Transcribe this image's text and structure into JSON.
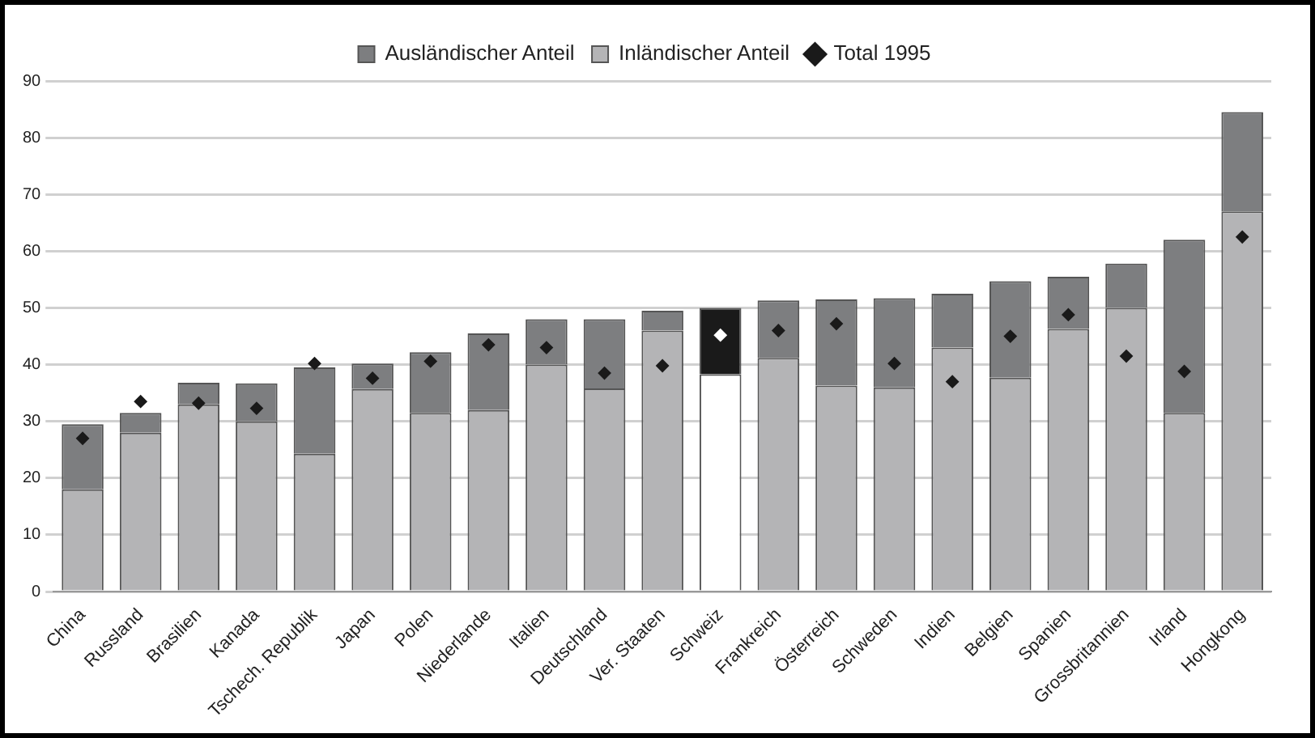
{
  "chart_data": {
    "type": "bar",
    "stacked": true,
    "categories": [
      "China",
      "Russland",
      "Brasilien",
      "Kanada",
      "Tschech. Republik",
      "Japan",
      "Polen",
      "Niederlande",
      "Italien",
      "Deutschland",
      "Ver. Staaten",
      "Schweiz",
      "Frankreich",
      "Österreich",
      "Schweden",
      "Indien",
      "Belgien",
      "Spanien",
      "Grossbritannien",
      "Irland",
      "Hongkong"
    ],
    "series": [
      {
        "name": "Inländischer Anteil",
        "color": "#b4b4b6",
        "colors": [
          "#b4b4b6",
          "#b4b4b6",
          "#b4b4b6",
          "#b4b4b6",
          "#b4b4b6",
          "#b4b4b6",
          "#b4b4b6",
          "#b4b4b6",
          "#b4b4b6",
          "#b4b4b6",
          "#b4b4b6",
          "#ffffff",
          "#b4b4b6",
          "#b4b4b6",
          "#b4b4b6",
          "#b4b4b6",
          "#b4b4b6",
          "#b4b4b6",
          "#b4b4b6",
          "#b4b4b6",
          "#b4b4b6"
        ],
        "values": [
          18,
          28,
          33,
          30,
          24.3,
          35.7,
          31.5,
          32,
          40,
          35.8,
          46,
          38.3,
          41.2,
          36.3,
          36,
          43,
          37.7,
          46.3,
          50,
          31.5,
          67
        ]
      },
      {
        "name": "Ausländischer Anteil",
        "color": "#7d7e80",
        "colors": [
          "#7d7e80",
          "#7d7e80",
          "#7d7e80",
          "#7d7e80",
          "#7d7e80",
          "#7d7e80",
          "#7d7e80",
          "#7d7e80",
          "#7d7e80",
          "#7d7e80",
          "#7d7e80",
          "#1a1a1a",
          "#7d7e80",
          "#7d7e80",
          "#7d7e80",
          "#7d7e80",
          "#7d7e80",
          "#7d7e80",
          "#7d7e80",
          "#7d7e80",
          "#7d7e80"
        ],
        "values": [
          11.5,
          3.5,
          3.8,
          6.7,
          15.2,
          4.5,
          10.7,
          13.5,
          8,
          12.2,
          3.5,
          11.7,
          10.1,
          15.2,
          15.7,
          9.5,
          17,
          9.2,
          7.8,
          30.5,
          17.5
        ]
      },
      {
        "name": "Total 1995",
        "type": "scatter",
        "marker": "diamond",
        "color": "#1a1a1a",
        "colors": [
          "#1a1a1a",
          "#1a1a1a",
          "#1a1a1a",
          "#1a1a1a",
          "#1a1a1a",
          "#1a1a1a",
          "#1a1a1a",
          "#1a1a1a",
          "#1a1a1a",
          "#1a1a1a",
          "#1a1a1a",
          "#ffffff",
          "#1a1a1a",
          "#1a1a1a",
          "#1a1a1a",
          "#1a1a1a",
          "#1a1a1a",
          "#1a1a1a",
          "#1a1a1a",
          "#1a1a1a",
          "#1a1a1a"
        ],
        "x": [
          "China",
          "Russland",
          "Brasilien",
          "Kanada",
          "Tschech. Republik",
          "Japan",
          "Polen",
          "Niederlande",
          "Italien",
          "Deutschland",
          "Ver. Staaten",
          "Schweiz",
          "Frankreich",
          "Österreich",
          "Schweden",
          "Indien",
          "Belgien",
          "Spanien",
          "Grossbritannien",
          "Irland",
          "Hongkong"
        ],
        "values": [
          27,
          33.5,
          33.2,
          32.3,
          40.2,
          37.6,
          40.6,
          43.5,
          43,
          38.5,
          39.8,
          45.2,
          46,
          47.2,
          40.2,
          37,
          45,
          48.8,
          41.5,
          38.8,
          62.5
        ]
      }
    ],
    "ylim": [
      0,
      90
    ],
    "yticks": [
      0,
      10,
      20,
      30,
      40,
      50,
      60,
      70,
      80,
      90
    ],
    "grid": "y",
    "legend": "top"
  }
}
